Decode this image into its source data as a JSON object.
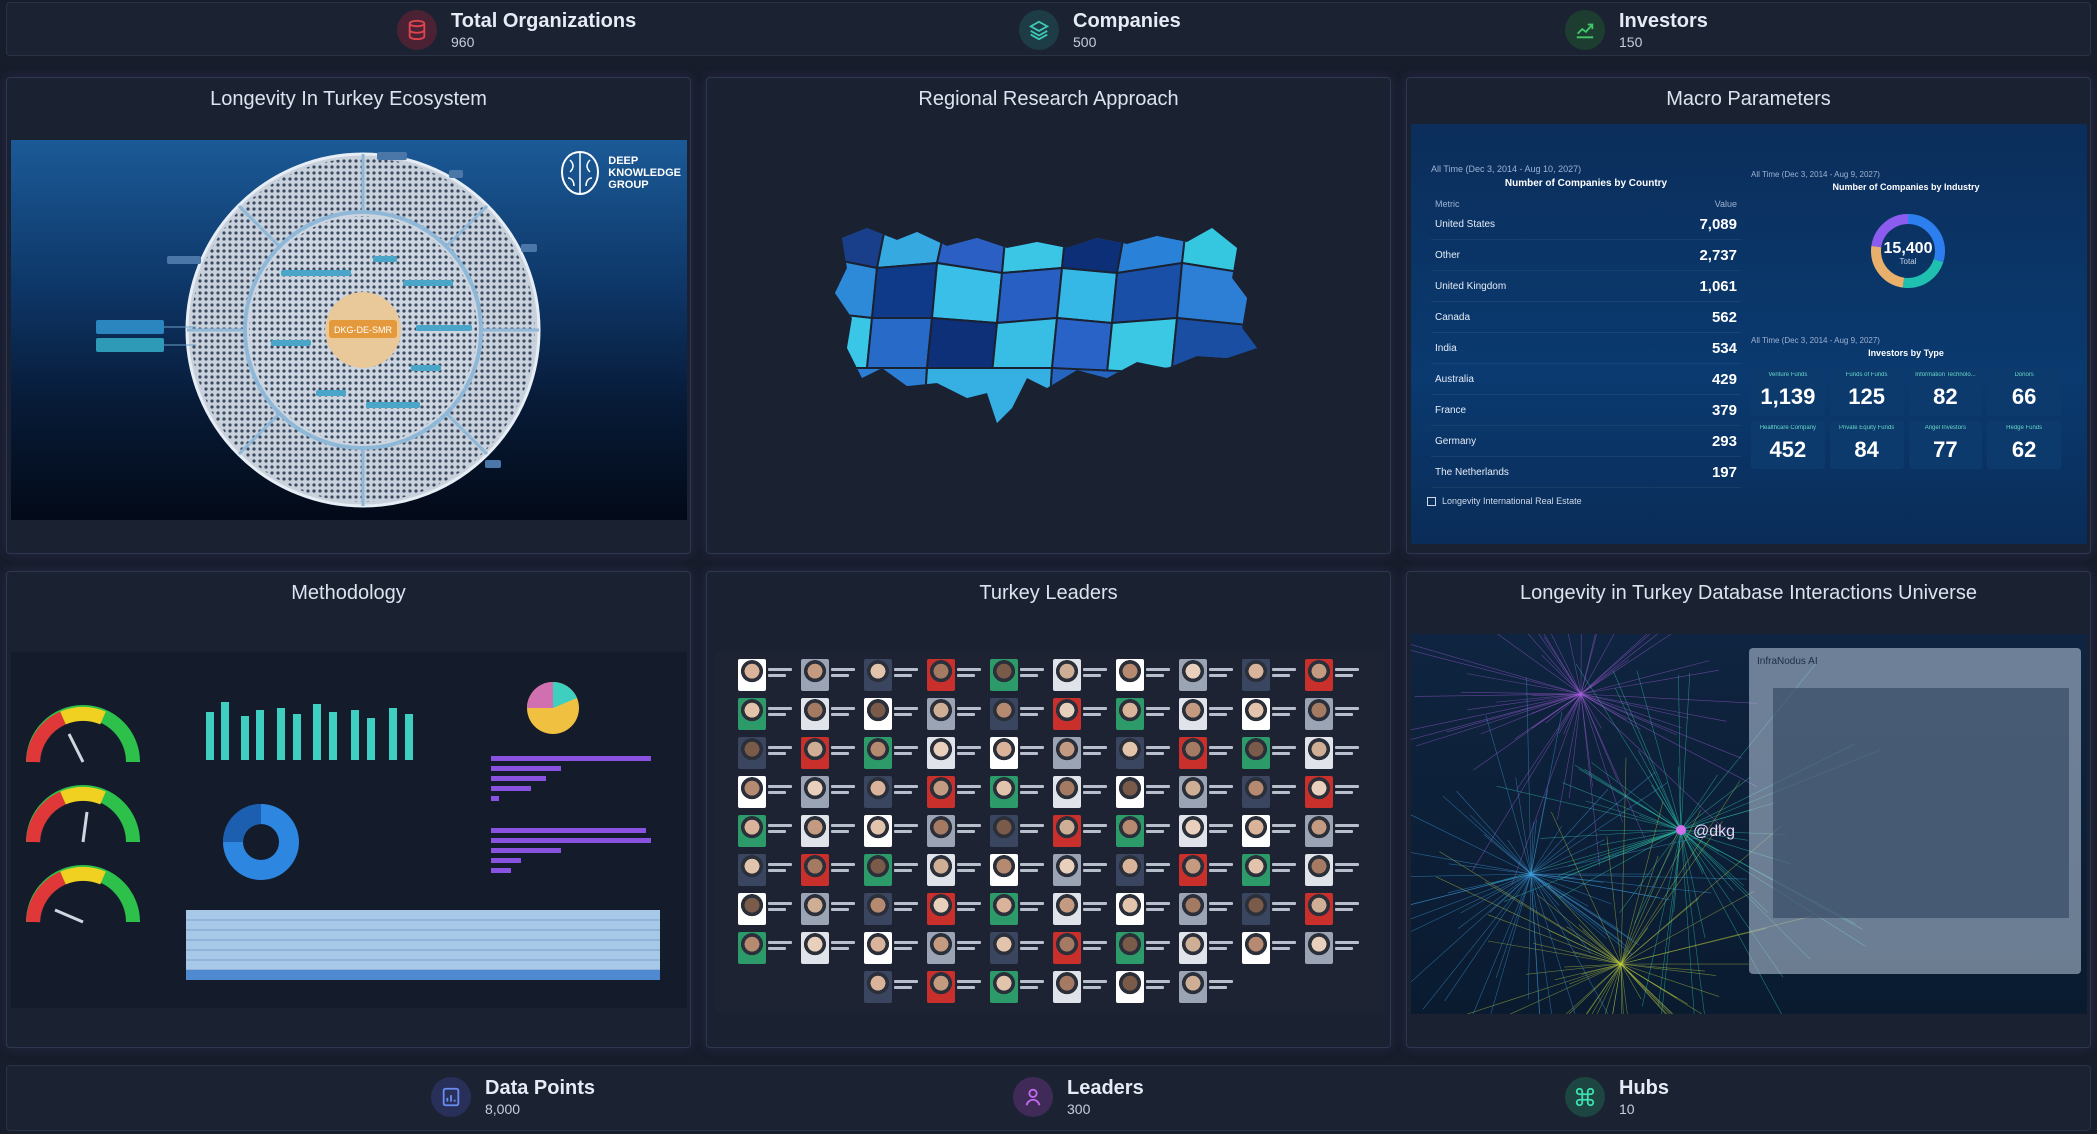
{
  "top_stats": [
    {
      "label": "Total Organizations",
      "value": "960",
      "icon": "database-icon",
      "color": "#e0454f",
      "bg": "#4a2233"
    },
    {
      "label": "Companies",
      "value": "500",
      "icon": "layers-icon",
      "color": "#3fc8b6",
      "bg": "#1d3c45"
    },
    {
      "label": "Investors",
      "value": "150",
      "icon": "trending-up-icon",
      "color": "#40c76a",
      "bg": "#1d3d30"
    }
  ],
  "bottom_stats": [
    {
      "label": "Data Points",
      "value": "8,000",
      "icon": "bar-chart-icon",
      "color": "#6a8cf0",
      "bg": "#28305a"
    },
    {
      "label": "Leaders",
      "value": "300",
      "icon": "user-icon",
      "color": "#c36af0",
      "bg": "#3f2a58"
    },
    {
      "label": "Hubs",
      "value": "10",
      "icon": "command-icon",
      "color": "#3fe0b0",
      "bg": "#1d4542"
    }
  ],
  "panels": {
    "ecosystem": {
      "title": "Longevity In Turkey Ecosystem",
      "logo_text": [
        "DEEP",
        "KNOWLEDGE",
        "GROUP"
      ],
      "center_label": "DKG-DE-SMR"
    },
    "research": {
      "title": "Regional Research Approach"
    },
    "macro": {
      "title": "Macro Parameters",
      "country_table": {
        "period": "All Time (Dec 3, 2014 - Aug 10, 2027)",
        "title": "Number of Companies by Country",
        "col_metric": "Metric",
        "col_value": "Value",
        "rows": [
          {
            "country": "United States",
            "value": "7,089"
          },
          {
            "country": "Other",
            "value": "2,737"
          },
          {
            "country": "United Kingdom",
            "value": "1,061"
          },
          {
            "country": "Canada",
            "value": "562"
          },
          {
            "country": "India",
            "value": "534"
          },
          {
            "country": "Australia",
            "value": "429"
          },
          {
            "country": "France",
            "value": "379"
          },
          {
            "country": "Germany",
            "value": "293"
          },
          {
            "country": "The Netherlands",
            "value": "197"
          }
        ],
        "footer": "Longevity International Real Estate"
      },
      "industry": {
        "period": "All Time (Dec 3, 2014 - Aug 9, 2027)",
        "title": "Number of Companies by Industry",
        "total": "15,400",
        "total_label": "Total"
      },
      "investors": {
        "period": "All Time (Dec 3, 2014 - Aug 9, 2027)",
        "title": "Investors by Type",
        "cells": [
          {
            "type": "Venture Funds",
            "value": "1,139"
          },
          {
            "type": "Funds of Funds",
            "value": "125"
          },
          {
            "type": "Information Technolo...",
            "value": "82"
          },
          {
            "type": "Donors",
            "value": "66"
          },
          {
            "type": "Healthcare Company",
            "value": "452"
          },
          {
            "type": "Private Equity Funds",
            "value": "84"
          },
          {
            "type": "Angel Investors",
            "value": "77"
          },
          {
            "type": "Hedge Funds",
            "value": "62"
          }
        ]
      }
    },
    "methodology": {
      "title": "Methodology"
    },
    "leaders": {
      "title": "Turkey Leaders"
    },
    "network": {
      "title": "Longevity in Turkey Database Interactions Universe",
      "window_title": "InfraNodus AI",
      "node_label": "@dkg"
    }
  }
}
